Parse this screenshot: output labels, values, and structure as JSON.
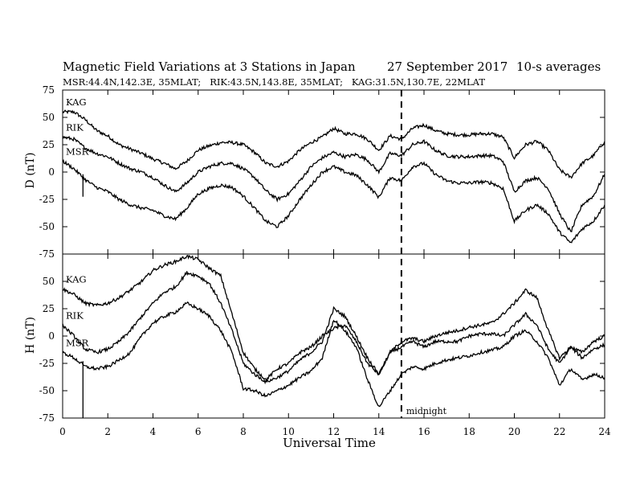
{
  "chart_data": {
    "type": "line",
    "title": "Magnetic Field Variations at 3 Stations in Japan",
    "date_label": "27 September 2017",
    "averaging": "10-s averages",
    "subtitle": "MSR:44.4N,142.3E, 35MLAT;   RIK:43.5N,143.8E, 35MLAT;   KAG:31.5N,130.7E, 22MLAT",
    "xlabel": "Universal Time",
    "xlim": [
      0,
      24
    ],
    "xticks": [
      "0",
      "2",
      "4",
      "6",
      "8",
      "10",
      "12",
      "14",
      "16",
      "18",
      "20",
      "22",
      "24"
    ],
    "yticks": [
      "75",
      "50",
      "25",
      "0",
      "-25",
      "-50",
      "-75"
    ],
    "midnight_label": "midnight",
    "midnight_x": 15,
    "panels": [
      {
        "ylabel": "D (nT)",
        "ylim": [
          -75,
          75
        ],
        "series": [
          {
            "name": "KAG",
            "x": [
              0,
              0.5,
              1,
              1.5,
              2,
              2.5,
              3,
              3.5,
              4,
              4.5,
              5,
              5.5,
              6,
              6.5,
              7,
              7.5,
              8,
              8.5,
              9,
              9.5,
              10,
              10.5,
              11,
              11.5,
              12,
              12.5,
              13,
              13.5,
              14,
              14.5,
              15,
              15.5,
              16,
              16.5,
              17,
              17.5,
              18,
              18.5,
              19,
              19.5,
              20,
              20.5,
              21,
              21.5,
              22,
              22.5,
              23,
              23.5,
              24
            ],
            "y": [
              55,
              55,
              48,
              38,
              33,
              25,
              21,
              17,
              12,
              8,
              3,
              10,
              20,
              24,
              27,
              27,
              25,
              18,
              8,
              5,
              10,
              20,
              27,
              32,
              40,
              35,
              35,
              30,
              20,
              33,
              30,
              40,
              43,
              38,
              35,
              34,
              34,
              35,
              35,
              32,
              13,
              25,
              28,
              20,
              2,
              -5,
              8,
              15,
              28
            ]
          },
          {
            "name": "RIK",
            "x": [
              0,
              0.5,
              1,
              1.5,
              2,
              2.5,
              3,
              3.5,
              4,
              4.5,
              5,
              5.5,
              6,
              6.5,
              7,
              7.5,
              8,
              8.5,
              9,
              9.5,
              10,
              10.5,
              11,
              11.5,
              12,
              12.5,
              13,
              13.5,
              14,
              14.5,
              15,
              15.5,
              16,
              16.5,
              17,
              17.5,
              18,
              18.5,
              19,
              19.5,
              20,
              20.5,
              21,
              21.5,
              22,
              22.5,
              23,
              23.5,
              24
            ],
            "y": [
              32,
              30,
              22,
              17,
              14,
              8,
              3,
              0,
              -5,
              -12,
              -18,
              -10,
              0,
              5,
              8,
              8,
              3,
              -5,
              -17,
              -25,
              -20,
              -8,
              5,
              13,
              18,
              14,
              16,
              11,
              0,
              17,
              15,
              25,
              28,
              20,
              15,
              14,
              14,
              15,
              15,
              10,
              -18,
              -8,
              -5,
              -15,
              -38,
              -55,
              -30,
              -22,
              -2
            ]
          },
          {
            "name": "MSR",
            "x": [
              0,
              0.5,
              1,
              1.5,
              2,
              2.5,
              3,
              3.5,
              4,
              4.5,
              5,
              5.5,
              6,
              6.5,
              7,
              7.5,
              8,
              8.5,
              9,
              9.5,
              10,
              10.5,
              11,
              11.5,
              12,
              12.5,
              13,
              13.5,
              14,
              14.5,
              15,
              15.5,
              16,
              16.5,
              17,
              17.5,
              18,
              18.5,
              19,
              19.5,
              20,
              20.5,
              21,
              21.5,
              22,
              22.5,
              23,
              23.5,
              24
            ],
            "y": [
              10,
              3,
              -7,
              -14,
              -18,
              -25,
              -30,
              -33,
              -35,
              -40,
              -43,
              -33,
              -20,
              -15,
              -12,
              -14,
              -22,
              -33,
              -45,
              -50,
              -40,
              -25,
              -12,
              0,
              5,
              0,
              -3,
              -12,
              -23,
              -5,
              -8,
              5,
              8,
              -2,
              -8,
              -10,
              -10,
              -9,
              -10,
              -15,
              -45,
              -35,
              -30,
              -38,
              -55,
              -65,
              -52,
              -45,
              -30
            ]
          }
        ]
      },
      {
        "ylabel": "H (nT)",
        "ylim": [
          -75,
          75
        ],
        "series": [
          {
            "name": "KAG",
            "x": [
              0,
              0.5,
              1,
              1.5,
              2,
              2.5,
              3,
              3.5,
              4,
              4.5,
              5,
              5.5,
              6,
              6.5,
              7,
              7.5,
              8,
              8.5,
              9,
              9.5,
              10,
              10.5,
              11,
              11.5,
              12,
              12.5,
              13,
              13.5,
              14,
              14.5,
              15,
              15.5,
              16,
              16.5,
              17,
              17.5,
              18,
              18.5,
              19,
              19.5,
              20,
              20.5,
              21,
              21.5,
              22,
              22.5,
              23,
              23.5,
              24
            ],
            "y": [
              43,
              38,
              30,
              28,
              30,
              35,
              42,
              50,
              60,
              65,
              68,
              73,
              70,
              62,
              55,
              20,
              -15,
              -30,
              -40,
              -30,
              -25,
              -15,
              -10,
              0,
              7,
              10,
              -5,
              -25,
              -35,
              -15,
              -10,
              -5,
              -10,
              -5,
              -5,
              -5,
              0,
              2,
              2,
              0,
              10,
              20,
              10,
              -12,
              -25,
              -10,
              -20,
              -12,
              -8
            ]
          },
          {
            "name": "RIK",
            "x": [
              0,
              0.5,
              1,
              1.5,
              2,
              2.5,
              3,
              3.5,
              4,
              4.5,
              5,
              5.5,
              6,
              6.5,
              7,
              7.5,
              8,
              8.5,
              9,
              9.5,
              10,
              10.5,
              11,
              11.5,
              12,
              12.5,
              13,
              13.5,
              14,
              14.5,
              15,
              15.5,
              16,
              16.5,
              17,
              17.5,
              18,
              18.5,
              19,
              19.5,
              20,
              20.5,
              21,
              21.5,
              22,
              22.5,
              23,
              23.5,
              24
            ],
            "y": [
              10,
              0,
              -12,
              -15,
              -12,
              -5,
              5,
              18,
              30,
              40,
              45,
              58,
              55,
              48,
              30,
              5,
              -25,
              -35,
              -42,
              -38,
              -32,
              -22,
              -15,
              -5,
              25,
              18,
              0,
              -20,
              -35,
              -15,
              -5,
              -2,
              -5,
              0,
              3,
              5,
              8,
              10,
              12,
              20,
              30,
              42,
              35,
              5,
              -20,
              -10,
              -15,
              -5,
              0
            ]
          },
          {
            "name": "MSR",
            "x": [
              0,
              0.5,
              1,
              1.5,
              2,
              2.5,
              3,
              3.5,
              4,
              4.5,
              5,
              5.5,
              6,
              6.5,
              7,
              7.5,
              8,
              8.5,
              9,
              9.5,
              10,
              10.5,
              11,
              11.5,
              12,
              12.5,
              13,
              13.5,
              14,
              14.5,
              15,
              15.5,
              16,
              16.5,
              17,
              17.5,
              18,
              18.5,
              19,
              19.5,
              20,
              20.5,
              21,
              21.5,
              22,
              22.5,
              23,
              23.5,
              24
            ],
            "y": [
              -15,
              -20,
              -28,
              -30,
              -28,
              -22,
              -15,
              0,
              12,
              18,
              22,
              30,
              25,
              18,
              5,
              -15,
              -48,
              -50,
              -55,
              -50,
              -45,
              -38,
              -32,
              -20,
              15,
              5,
              -10,
              -40,
              -65,
              -50,
              -35,
              -28,
              -30,
              -25,
              -22,
              -20,
              -18,
              -15,
              -13,
              -10,
              0,
              5,
              -5,
              -20,
              -45,
              -30,
              -40,
              -35,
              -38
            ]
          }
        ]
      }
    ]
  }
}
